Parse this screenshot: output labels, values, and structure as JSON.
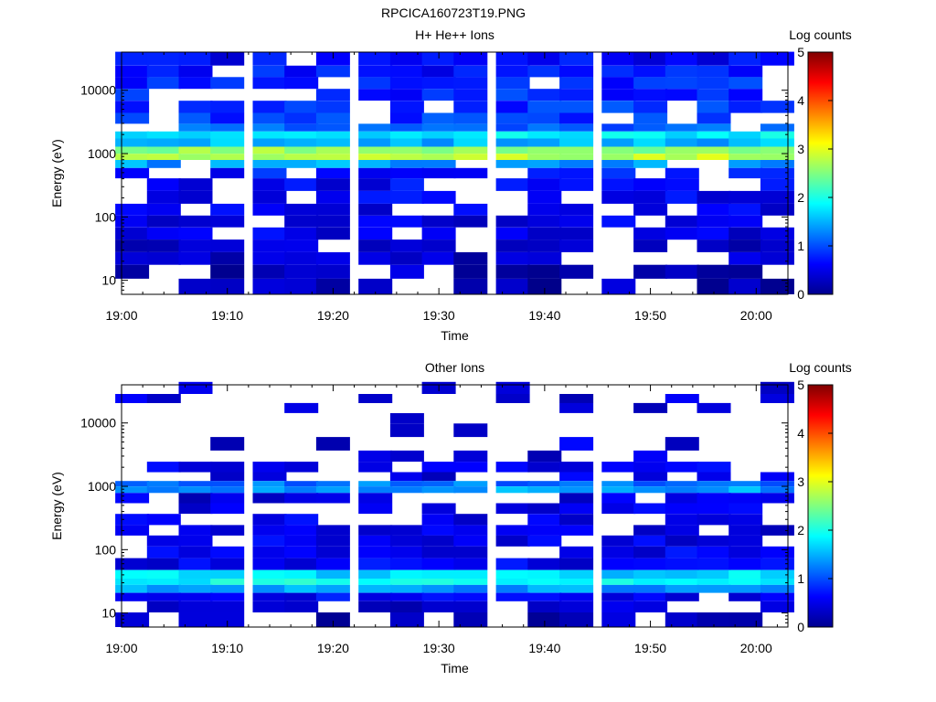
{
  "figure": {
    "title": "RPCICA160723T19.PNG"
  },
  "chart_data": [
    {
      "type": "heatmap",
      "title": "H+ He++ Ions",
      "xlabel": "Time",
      "ylabel": "Energy (eV)",
      "y_scale": "log",
      "xlim": [
        "19:00",
        "20:03"
      ],
      "ylim": [
        6,
        40000
      ],
      "x_ticks": [
        "19:00",
        "19:10",
        "19:20",
        "19:30",
        "19:40",
        "19:50",
        "20:00"
      ],
      "y_ticks": [
        "10",
        "100",
        "1000",
        "10000"
      ],
      "colorbar": {
        "label": "Log counts",
        "range": [
          0,
          5
        ],
        "ticks": [
          "0",
          "1",
          "2",
          "3",
          "4",
          "5"
        ]
      },
      "seed": 7,
      "time_bins": [
        "19:01",
        "19:04",
        "19:07",
        "19:10",
        "19:14",
        "19:17",
        "19:20",
        "19:24",
        "19:27",
        "19:30",
        "19:33",
        "19:37",
        "19:40",
        "19:43",
        "19:47",
        "19:50",
        "19:53",
        "19:56",
        "19:59",
        "20:02"
      ],
      "energy_bands": [
        {
          "e": 30000,
          "level": 0.6,
          "fill": 0.9
        },
        {
          "e": 20000,
          "level": 0.7,
          "fill": 0.85
        },
        {
          "e": 13000,
          "level": 0.8,
          "fill": 0.8
        },
        {
          "e": 8500,
          "level": 0.8,
          "fill": 0.75
        },
        {
          "e": 5500,
          "level": 0.85,
          "fill": 0.7
        },
        {
          "e": 3500,
          "level": 0.9,
          "fill": 0.75
        },
        {
          "e": 2500,
          "level": 1.1,
          "fill": 0.9
        },
        {
          "e": 2000,
          "level": 1.8,
          "fill": 1
        },
        {
          "e": 1500,
          "level": 1.5,
          "fill": 1
        },
        {
          "e": 1100,
          "level": 2.6,
          "fill": 1
        },
        {
          "e": 900,
          "level": 2.8,
          "fill": 1
        },
        {
          "e": 700,
          "level": 1.4,
          "fill": 0.9
        },
        {
          "e": 500,
          "level": 0.7,
          "fill": 0.7
        },
        {
          "e": 330,
          "level": 0.6,
          "fill": 0.65
        },
        {
          "e": 200,
          "level": 0.6,
          "fill": 0.7
        },
        {
          "e": 130,
          "level": 0.5,
          "fill": 0.7
        },
        {
          "e": 85,
          "level": 0.5,
          "fill": 0.75
        },
        {
          "e": 55,
          "level": 0.5,
          "fill": 0.75
        },
        {
          "e": 35,
          "level": 0.4,
          "fill": 0.8
        },
        {
          "e": 22,
          "level": 0.35,
          "fill": 0.75
        },
        {
          "e": 14,
          "level": 0.3,
          "fill": 0.7
        },
        {
          "e": 8,
          "level": 0.25,
          "fill": 0.65
        }
      ]
    },
    {
      "type": "heatmap",
      "title": "Other Ions",
      "xlabel": "Time",
      "ylabel": "Energy (eV)",
      "y_scale": "log",
      "xlim": [
        "19:00",
        "20:03"
      ],
      "ylim": [
        6,
        40000
      ],
      "x_ticks": [
        "19:00",
        "19:10",
        "19:20",
        "19:30",
        "19:40",
        "19:50",
        "20:00"
      ],
      "y_ticks": [
        "10",
        "100",
        "1000",
        "10000"
      ],
      "colorbar": {
        "label": "Log counts",
        "range": [
          0,
          5
        ],
        "ticks": [
          "0",
          "1",
          "2",
          "3",
          "4",
          "5"
        ]
      },
      "seed": 19,
      "time_bins": [
        "19:01",
        "19:04",
        "19:07",
        "19:10",
        "19:14",
        "19:17",
        "19:20",
        "19:24",
        "19:27",
        "19:30",
        "19:33",
        "19:37",
        "19:40",
        "19:43",
        "19:47",
        "19:50",
        "19:53",
        "19:56",
        "19:59",
        "20:02"
      ],
      "energy_bands": [
        {
          "e": 33000,
          "level": 0.4,
          "fill": 0.15
        },
        {
          "e": 25000,
          "level": 0.4,
          "fill": 0.25
        },
        {
          "e": 17000,
          "level": 0.4,
          "fill": 0.25
        },
        {
          "e": 12000,
          "level": 0.4,
          "fill": 0.15
        },
        {
          "e": 8000,
          "level": 0.4,
          "fill": 0.12
        },
        {
          "e": 4500,
          "level": 0.45,
          "fill": 0.25
        },
        {
          "e": 3000,
          "level": 0.45,
          "fill": 0.3
        },
        {
          "e": 2000,
          "level": 0.6,
          "fill": 0.75
        },
        {
          "e": 1400,
          "level": 0.5,
          "fill": 0.45
        },
        {
          "e": 1050,
          "level": 1.2,
          "fill": 1
        },
        {
          "e": 950,
          "level": 1.4,
          "fill": 1
        },
        {
          "e": 650,
          "level": 0.45,
          "fill": 0.5
        },
        {
          "e": 450,
          "level": 0.5,
          "fill": 0.55
        },
        {
          "e": 300,
          "level": 0.5,
          "fill": 0.6
        },
        {
          "e": 200,
          "level": 0.5,
          "fill": 0.75
        },
        {
          "e": 140,
          "level": 0.5,
          "fill": 0.8
        },
        {
          "e": 90,
          "level": 0.55,
          "fill": 0.85
        },
        {
          "e": 60,
          "level": 0.55,
          "fill": 0.9
        },
        {
          "e": 38,
          "level": 1.7,
          "fill": 1
        },
        {
          "e": 32,
          "level": 1.9,
          "fill": 1
        },
        {
          "e": 24,
          "level": 1.4,
          "fill": 1
        },
        {
          "e": 18,
          "level": 0.6,
          "fill": 0.9
        },
        {
          "e": 13,
          "level": 0.4,
          "fill": 0.85
        },
        {
          "e": 8,
          "level": 0.3,
          "fill": 0.6
        }
      ]
    }
  ]
}
